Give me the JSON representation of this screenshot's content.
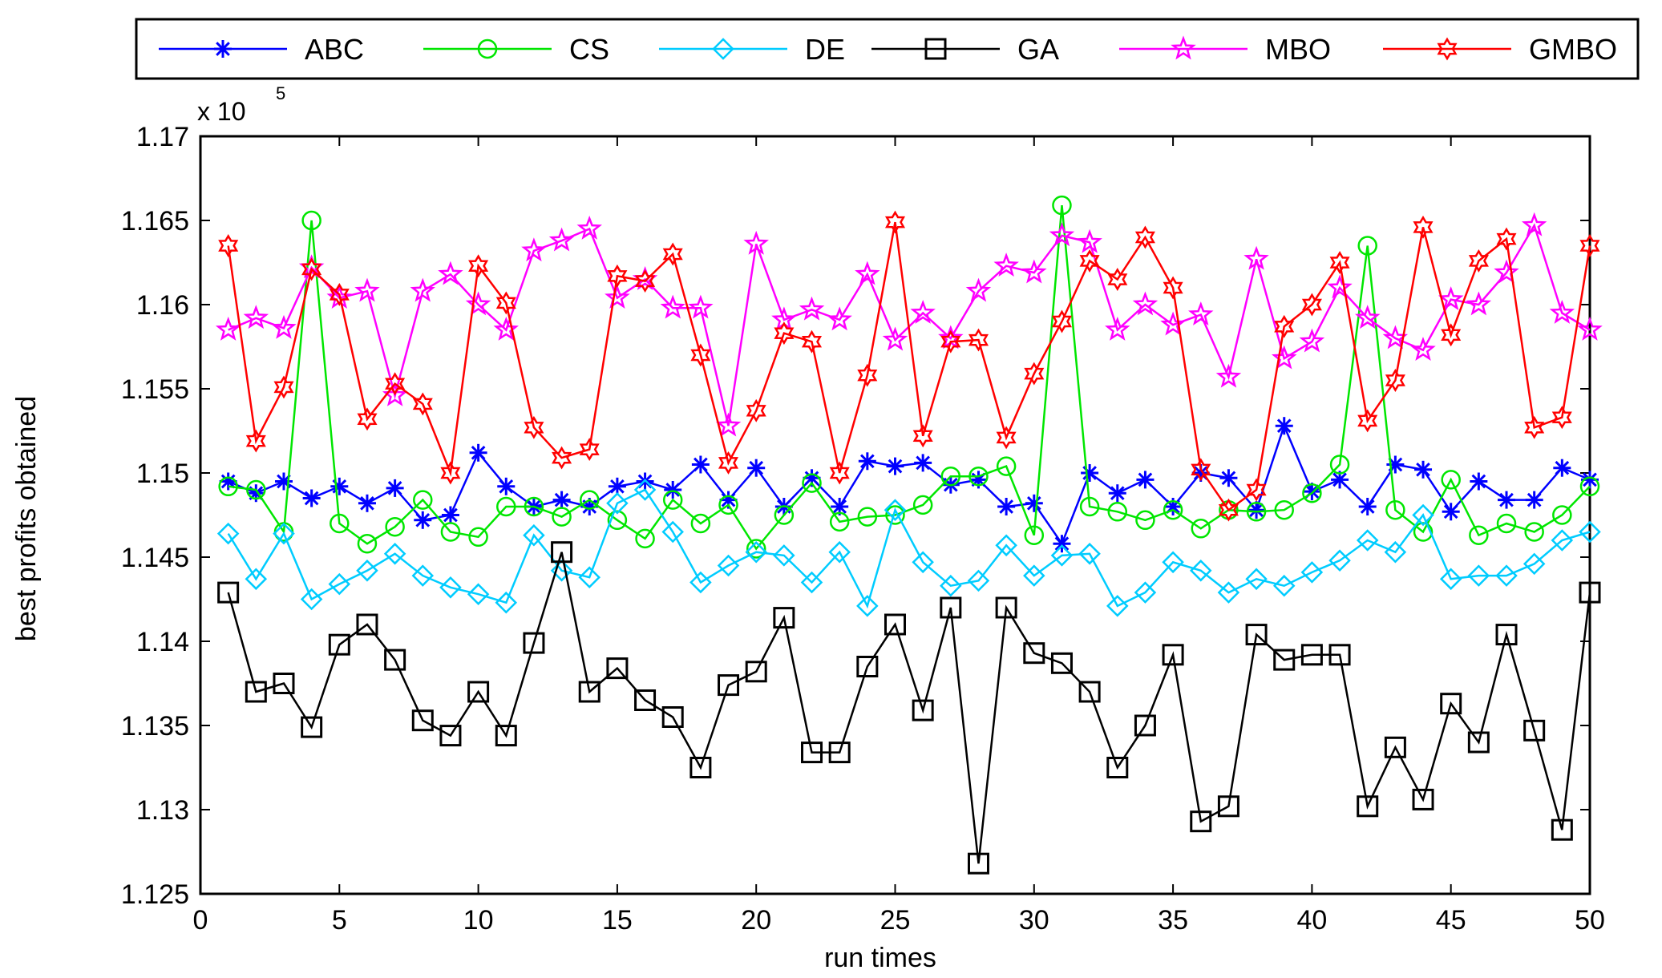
{
  "chart_data": {
    "type": "line",
    "title": "",
    "xlabel": "run times",
    "ylabel": "best profits obtained",
    "y_multiplier_label": "x 10",
    "y_multiplier_exponent": "5",
    "xlim": [
      0,
      50
    ],
    "ylim": [
      1.125,
      1.17
    ],
    "x_ticks": [
      0,
      5,
      10,
      15,
      20,
      25,
      30,
      35,
      40,
      45,
      50
    ],
    "y_ticks": [
      1.125,
      1.13,
      1.135,
      1.14,
      1.145,
      1.15,
      1.155,
      1.16,
      1.165,
      1.17
    ],
    "y_tick_labels": [
      "1.125",
      "1.13",
      "1.135",
      "1.14",
      "1.145",
      "1.15",
      "1.155",
      "1.16",
      "1.165",
      "1.17"
    ],
    "grid": false,
    "legend_position": "top",
    "x": [
      1,
      2,
      3,
      4,
      5,
      6,
      7,
      8,
      9,
      10,
      11,
      12,
      13,
      14,
      15,
      16,
      17,
      18,
      19,
      20,
      21,
      22,
      23,
      24,
      25,
      26,
      27,
      28,
      29,
      30,
      31,
      32,
      33,
      34,
      35,
      36,
      37,
      38,
      39,
      40,
      41,
      42,
      43,
      44,
      45,
      46,
      47,
      48,
      49,
      50
    ],
    "series": [
      {
        "name": "ABC",
        "color": "#0000ff",
        "marker": "asterisk",
        "values": [
          1.1495,
          1.1488,
          1.1495,
          1.1485,
          1.1492,
          1.1482,
          1.1491,
          1.1472,
          1.1475,
          1.1512,
          1.1492,
          1.148,
          1.1484,
          1.148,
          1.1492,
          1.1495,
          1.149,
          1.1505,
          1.1484,
          1.1503,
          1.148,
          1.1497,
          1.148,
          1.1507,
          1.1504,
          1.1506,
          1.1493,
          1.1496,
          1.148,
          1.1482,
          1.1458,
          1.15,
          1.1488,
          1.1496,
          1.148,
          1.15,
          1.1497,
          1.1478,
          1.1528,
          1.1489,
          1.1496,
          1.148,
          1.1505,
          1.1502,
          1.1477,
          1.1495,
          1.1484,
          1.1484,
          1.1503,
          1.1496
        ]
      },
      {
        "name": "CS",
        "color": "#00e600",
        "marker": "circle",
        "values": [
          1.1492,
          1.149,
          1.1465,
          1.165,
          1.147,
          1.1458,
          1.1468,
          1.1484,
          1.1465,
          1.1462,
          1.148,
          1.148,
          1.1474,
          1.1484,
          1.1472,
          1.1461,
          1.1484,
          1.147,
          1.1481,
          1.1455,
          1.1475,
          1.1494,
          1.1471,
          1.1474,
          1.1475,
          1.1481,
          1.1498,
          1.1498,
          1.1504,
          1.1463,
          1.1659,
          1.148,
          1.1477,
          1.1472,
          1.1478,
          1.1467,
          1.1478,
          1.1477,
          1.1478,
          1.1488,
          1.1505,
          1.1635,
          1.1478,
          1.1465,
          1.1496,
          1.1463,
          1.147,
          1.1465,
          1.1475,
          1.1492
        ]
      },
      {
        "name": "DE",
        "color": "#00ccff",
        "marker": "diamond",
        "values": [
          1.1464,
          1.1437,
          1.1464,
          1.1425,
          1.1434,
          1.1442,
          1.1452,
          1.1439,
          1.1432,
          1.1428,
          1.1423,
          1.1463,
          1.1442,
          1.1438,
          1.1482,
          1.149,
          1.1465,
          1.1435,
          1.1445,
          1.1453,
          1.1451,
          1.1435,
          1.1453,
          1.1421,
          1.1478,
          1.1447,
          1.1433,
          1.1436,
          1.1457,
          1.1439,
          1.1451,
          1.1452,
          1.1421,
          1.1429,
          1.1447,
          1.1442,
          1.1429,
          1.1437,
          1.1433,
          1.1441,
          1.1448,
          1.146,
          1.1453,
          1.1475,
          1.1437,
          1.1439,
          1.1439,
          1.1446,
          1.146,
          1.1465
        ]
      },
      {
        "name": "GA",
        "color": "#000000",
        "marker": "square",
        "values": [
          1.1429,
          1.137,
          1.1375,
          1.1349,
          1.1398,
          1.141,
          1.1389,
          1.1353,
          1.1344,
          1.137,
          1.1344,
          1.1399,
          1.1453,
          1.137,
          1.1384,
          1.1365,
          1.1355,
          1.1325,
          1.1374,
          1.1382,
          1.1414,
          1.1334,
          1.1334,
          1.1385,
          1.141,
          1.1359,
          1.142,
          1.1268,
          1.142,
          1.1393,
          1.1387,
          1.137,
          1.1325,
          1.135,
          1.1392,
          1.1293,
          1.1302,
          1.1404,
          1.1389,
          1.1392,
          1.1392,
          1.1302,
          1.1337,
          1.1306,
          1.1363,
          1.134,
          1.1404,
          1.1347,
          1.1288,
          1.1429
        ]
      },
      {
        "name": "MBO",
        "color": "#ff00ff",
        "marker": "pentagram",
        "values": [
          1.1585,
          1.1592,
          1.1586,
          1.1622,
          1.1604,
          1.1608,
          1.1546,
          1.1608,
          1.1618,
          1.16,
          1.1585,
          1.1632,
          1.1638,
          1.1645,
          1.1604,
          1.1615,
          1.1598,
          1.1598,
          1.1528,
          1.1636,
          1.1591,
          1.1597,
          1.1591,
          1.1618,
          1.1579,
          1.1595,
          1.158,
          1.1608,
          1.1623,
          1.1619,
          1.1641,
          1.1637,
          1.1585,
          1.16,
          1.1588,
          1.1594,
          1.1557,
          1.1627,
          1.1568,
          1.1578,
          1.161,
          1.1592,
          1.158,
          1.1573,
          1.1603,
          1.16,
          1.1619,
          1.1647,
          1.1595,
          1.1585
        ]
      },
      {
        "name": "GMBO",
        "color": "#ff0000",
        "marker": "hexagram",
        "values": [
          1.1635,
          1.1519,
          1.1551,
          1.1621,
          1.1606,
          1.1532,
          1.1553,
          1.1541,
          1.15,
          1.1623,
          1.1601,
          1.1527,
          1.1509,
          1.1514,
          1.1617,
          1.1614,
          1.163,
          1.157,
          1.1506,
          1.1537,
          1.1583,
          1.1578,
          1.15,
          1.1558,
          1.1649,
          1.1522,
          1.1578,
          1.1579,
          1.1521,
          1.1559,
          1.159,
          1.1626,
          1.1615,
          1.164,
          1.161,
          1.1502,
          1.1478,
          1.149,
          1.1587,
          1.16,
          1.1625,
          1.1531,
          1.1555,
          1.1646,
          1.1582,
          1.1626,
          1.1639,
          1.1527,
          1.1533,
          1.1635
        ]
      }
    ]
  }
}
